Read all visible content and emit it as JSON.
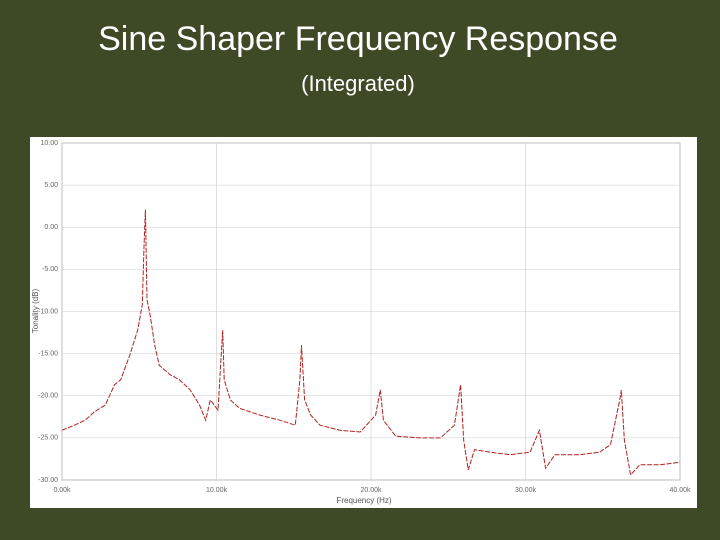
{
  "chart_data": {
    "type": "line",
    "title": "Sine Shaper Frequency Response",
    "subtitle": "(Integrated)",
    "x_label": "Frequency (Hz)",
    "y_label": "Tonality (dB)",
    "color": "#b22222",
    "grid": true,
    "xlim": [
      0,
      40000
    ],
    "xticks": [
      {
        "value": 0,
        "label": "0.00k"
      },
      {
        "value": 10000,
        "label": "10.00k"
      },
      {
        "value": 20000,
        "label": "20.00k"
      },
      {
        "value": 30000,
        "label": "30.00k"
      },
      {
        "value": 40000,
        "label": "40.00k"
      }
    ],
    "ylim": [
      -30,
      10
    ],
    "yticks": [
      {
        "value": 10,
        "label": "10.00"
      },
      {
        "value": 5,
        "label": "5.00"
      },
      {
        "value": 0,
        "label": "0.00"
      },
      {
        "value": -5,
        "label": "-5.00"
      },
      {
        "value": -10,
        "label": "-10.00"
      },
      {
        "value": -15,
        "label": "-15.00"
      },
      {
        "value": -20,
        "label": "-20.00"
      },
      {
        "value": -25,
        "label": "-25.00"
      },
      {
        "value": -30,
        "label": "-30.00"
      }
    ],
    "x": [
      0,
      800,
      1500,
      2100,
      2800,
      3400,
      3800,
      4400,
      4900,
      5200,
      5300,
      5400,
      5500,
      5700,
      6000,
      6300,
      7000,
      7600,
      8300,
      8900,
      9300,
      9600,
      10100,
      10400,
      10500,
      10900,
      11500,
      12800,
      14100,
      15100,
      15400,
      15500,
      15700,
      16100,
      16700,
      18000,
      19300,
      20300,
      20600,
      20800,
      21600,
      23200,
      24500,
      25400,
      25800,
      26000,
      26300,
      26700,
      27700,
      29000,
      30300,
      30900,
      31300,
      31900,
      33500,
      34800,
      35500,
      36100,
      36200,
      36400,
      36800,
      37400,
      38700,
      40000
    ],
    "values": [
      -24.1,
      -23.5,
      -22.9,
      -21.9,
      -21.1,
      -18.7,
      -18.1,
      -15.1,
      -12.2,
      -9.2,
      -2.7,
      2.1,
      -8.6,
      -10.4,
      -14.0,
      -16.4,
      -17.5,
      -18.1,
      -19.3,
      -21.1,
      -22.9,
      -20.5,
      -21.7,
      -12.2,
      -18.1,
      -20.5,
      -21.5,
      -22.3,
      -22.9,
      -23.5,
      -18.1,
      -14.0,
      -20.5,
      -22.3,
      -23.5,
      -24.1,
      -24.3,
      -22.3,
      -19.3,
      -22.9,
      -24.8,
      -25.0,
      -25.0,
      -23.5,
      -18.7,
      -25.3,
      -28.8,
      -26.4,
      -26.7,
      -27.0,
      -26.7,
      -24.1,
      -28.6,
      -27.0,
      -27.0,
      -26.7,
      -25.8,
      -20.5,
      -19.3,
      -25.3,
      -29.4,
      -28.2,
      -28.2,
      -27.9
    ]
  }
}
